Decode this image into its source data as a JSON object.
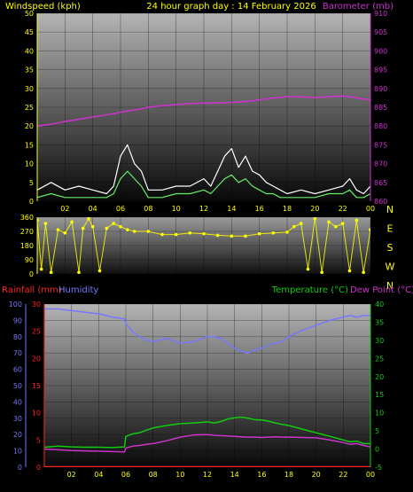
{
  "header": {
    "left_label": "Windspeed (kph)",
    "center_label": "24 hour graph day : 14 February 2026",
    "right_label": "Barometer (mb)"
  },
  "panel3_header": {
    "rainfall_label": "Rainfall (mm)",
    "humidity_label": "Humidity",
    "temperature_label": "Temperature (°C)",
    "dewpoint_label": "Dew Point (°C)"
  },
  "colors": {
    "wind": "#ffffff",
    "wind_avg": "#66ee66",
    "barometer": "#cc33cc",
    "direction": "#ffff00",
    "humidity": "#7777ff",
    "temperature": "#11cc11",
    "dewpoint": "#cc33cc",
    "rainfall": "#ff2222",
    "left_axis": "#ffff00",
    "compass": "#ffff00"
  },
  "x_ticks": [
    "02",
    "04",
    "06",
    "08",
    "10",
    "12",
    "14",
    "16",
    "18",
    "20",
    "22",
    "00"
  ],
  "chart_data": [
    {
      "id": "wind_barometer",
      "type": "line",
      "xlim": [
        0,
        24
      ],
      "x": [
        0,
        1,
        2,
        3,
        4,
        5,
        5.5,
        6,
        6.5,
        7,
        7.5,
        8,
        9,
        10,
        11,
        12,
        12.5,
        13,
        13.5,
        14,
        14.5,
        15,
        15.5,
        16,
        16.5,
        17,
        17.5,
        18,
        19,
        20,
        21,
        22,
        22.5,
        23,
        23.5,
        24
      ],
      "y_left_label": "Windspeed (kph)",
      "y_left_ticks": [
        0,
        5,
        10,
        15,
        20,
        25,
        30,
        35,
        40,
        45,
        50
      ],
      "ylim_left": [
        0,
        50
      ],
      "y_right_label": "Barometer (mb)",
      "y_right_ticks": [
        860,
        865,
        870,
        875,
        880,
        885,
        890,
        895,
        900,
        905,
        910
      ],
      "ylim_right": [
        860,
        910
      ],
      "series": [
        {
          "name": "Windspeed (kph)",
          "axis": "left",
          "values": [
            3,
            5,
            3,
            4,
            3,
            2,
            4,
            12,
            15,
            10,
            8,
            3,
            3,
            4,
            4,
            6,
            4,
            8,
            12,
            14,
            9,
            12,
            8,
            7,
            5,
            4,
            3,
            2,
            3,
            2,
            3,
            4,
            6,
            3,
            2,
            4
          ]
        },
        {
          "name": "",
          "axis": "left",
          "values": [
            1,
            2,
            1,
            1,
            1,
            1,
            2,
            6,
            8,
            6,
            4,
            1,
            1,
            2,
            2,
            3,
            2,
            4,
            6,
            7,
            5,
            6,
            4,
            3,
            2,
            2,
            1,
            1,
            1,
            1,
            2,
            2,
            3,
            1,
            1,
            2
          ]
        },
        {
          "name": "Barometer (mb)",
          "axis": "right",
          "values": [
            880,
            880.5,
            881.2,
            881.8,
            882.4,
            883,
            883.3,
            883.7,
            884,
            884.3,
            884.6,
            885,
            885.4,
            885.7,
            886,
            886.1,
            886.1,
            886.2,
            886.2,
            886.3,
            886.4,
            886.5,
            886.7,
            887,
            887.2,
            887.5,
            887.6,
            887.8,
            887.8,
            887.6,
            887.8,
            888,
            887.8,
            887.5,
            887.2,
            887
          ]
        }
      ]
    },
    {
      "id": "wind_direction",
      "type": "scatter",
      "xlim": [
        0,
        24
      ],
      "x": [
        0,
        0.3,
        0.6,
        1,
        1.5,
        2,
        2.5,
        3,
        3.3,
        3.7,
        4,
        4.5,
        5,
        5.5,
        6,
        6.5,
        7,
        8,
        9,
        10,
        11,
        12,
        13,
        14,
        15,
        16,
        17,
        18,
        18.5,
        19,
        19.5,
        20,
        20.5,
        21,
        21.5,
        22,
        22.5,
        23,
        23.5,
        24
      ],
      "ylim": [
        0,
        360
      ],
      "y_ticks": [
        0,
        90,
        180,
        270,
        360
      ],
      "compass_labels": [
        "N",
        "W",
        "S",
        "E",
        "N"
      ],
      "series": [
        {
          "name": "",
          "values": [
            340,
            30,
            320,
            10,
            280,
            260,
            330,
            10,
            290,
            350,
            300,
            20,
            290,
            320,
            300,
            280,
            270,
            270,
            250,
            250,
            260,
            255,
            245,
            240,
            240,
            255,
            260,
            265,
            300,
            320,
            30,
            350,
            10,
            330,
            300,
            320,
            20,
            340,
            10,
            280
          ]
        }
      ]
    },
    {
      "id": "temp_hum_rain",
      "type": "line",
      "xlim": [
        0,
        24
      ],
      "x": [
        0,
        1,
        2,
        3,
        4,
        5,
        5.9,
        6,
        6.5,
        7,
        7.5,
        8,
        9,
        10,
        11,
        12,
        12.5,
        13,
        13.5,
        14,
        14.5,
        15,
        15.5,
        16,
        16.5,
        17,
        17.5,
        18,
        19,
        20,
        21,
        22,
        22.5,
        23,
        23.5,
        24
      ],
      "y_left_label": "Humidity",
      "y_left_ticks": [
        0,
        10,
        20,
        30,
        40,
        50,
        60,
        70,
        80,
        90,
        100
      ],
      "ylim_left": [
        0,
        100
      ],
      "y_rain_label": "Rainfall (mm)",
      "y_rain_ticks": [
        0,
        5,
        10,
        15,
        20,
        25,
        30
      ],
      "ylim_rain": [
        0,
        30
      ],
      "y_right_label": "Temperature (°C)",
      "y_right_ticks": [
        -5,
        0,
        5,
        10,
        15,
        20,
        25,
        30,
        35,
        40
      ],
      "ylim_right": [
        -5,
        40
      ],
      "series": [
        {
          "name": "Humidity",
          "axis": "left",
          "values": [
            97,
            97,
            96,
            95,
            94,
            92,
            91,
            88,
            83,
            80,
            78,
            77,
            79,
            76,
            77,
            80,
            80,
            79,
            76,
            73,
            71,
            70,
            72,
            73,
            75,
            76,
            77,
            80,
            84,
            87,
            90,
            92,
            93,
            92,
            93,
            93
          ]
        },
        {
          "name": "Temperature (°C)",
          "axis": "right",
          "values": [
            0.5,
            0.8,
            0.6,
            0.5,
            0.5,
            0.4,
            0.6,
            3.5,
            4.2,
            4.5,
            5.2,
            5.8,
            6.5,
            7,
            7.2,
            7.5,
            7.2,
            7.6,
            8.3,
            8.6,
            8.8,
            8.5,
            8.1,
            8,
            7.7,
            7.2,
            6.8,
            6.5,
            5.5,
            4.5,
            3.5,
            2.5,
            2,
            2.2,
            1.5,
            1.5
          ]
        },
        {
          "name": "Dew Point (°C)",
          "axis": "right",
          "values": [
            0,
            -0.2,
            -0.4,
            -0.5,
            -0.6,
            -0.7,
            -0.8,
            0.3,
            0.8,
            1,
            1.3,
            1.5,
            2.3,
            3.3,
            3.9,
            4,
            3.8,
            3.7,
            3.6,
            3.5,
            3.4,
            3.3,
            3.3,
            3.2,
            3.3,
            3.4,
            3.3,
            3.3,
            3.2,
            3.1,
            2.5,
            1.8,
            1.3,
            1.5,
            1,
            0.6
          ]
        },
        {
          "name": "Rainfall (mm)",
          "axis": "rain",
          "values": [
            0,
            0,
            0,
            0,
            0,
            0,
            0,
            0,
            0,
            0,
            0,
            0,
            0,
            0,
            0,
            0,
            0,
            0,
            0,
            0,
            0,
            0,
            0,
            0,
            0,
            0,
            0,
            0,
            0,
            0,
            0,
            0,
            0,
            0,
            0,
            0
          ]
        }
      ]
    }
  ]
}
